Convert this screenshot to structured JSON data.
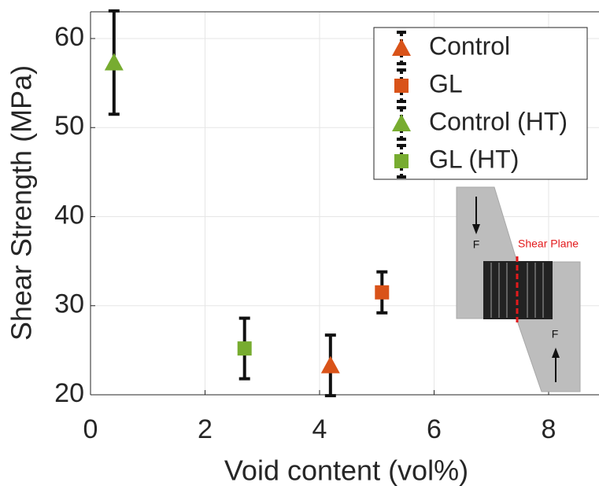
{
  "chart_data": {
    "type": "scatter",
    "x_label": "Void content (vol%)",
    "y_label": "Shear Strength (MPa)",
    "xlim": [
      0,
      8.9
    ],
    "ylim": [
      20,
      63
    ],
    "xticks": [
      0,
      2,
      4,
      6,
      8
    ],
    "yticks": [
      20,
      30,
      40,
      50,
      60
    ],
    "grid": true,
    "legend": "upper right",
    "series": [
      {
        "name": "Control",
        "color": "#d95319",
        "marker": "triangle",
        "x": [
          4.19
        ],
        "values": [
          23.3
        ],
        "errors": [
          3.4
        ]
      },
      {
        "name": "GL",
        "color": "#d95319",
        "marker": "square",
        "x": [
          5.09
        ],
        "values": [
          31.5
        ],
        "errors": [
          2.3
        ]
      },
      {
        "name": "Control (HT)",
        "color": "#77ac30",
        "marker": "triangle",
        "x": [
          0.41
        ],
        "values": [
          57.3
        ],
        "errors": [
          5.8
        ]
      },
      {
        "name": "GL (HT)",
        "color": "#77ac30",
        "marker": "square",
        "x": [
          2.69
        ],
        "values": [
          25.2
        ],
        "errors": [
          3.4
        ]
      }
    ],
    "annotations": [
      "Shear Plane",
      "F",
      "F"
    ]
  }
}
